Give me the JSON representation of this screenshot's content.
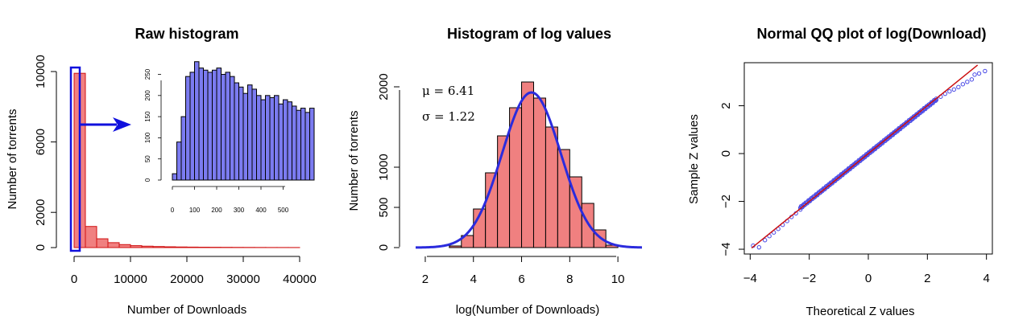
{
  "chart_data": [
    {
      "type": "bar",
      "title": "Raw histogram",
      "xlabel": "Number of Downloads",
      "ylabel": "Number of torrents",
      "xlim": [
        0,
        40000
      ],
      "ylim": [
        0,
        10000
      ],
      "x_ticks": [
        "0",
        "10000",
        "20000",
        "30000",
        "40000"
      ],
      "y_ticks": [
        "0",
        "2000",
        "6000",
        "10000"
      ],
      "bar_color": "#f08080",
      "edge_color": "#d01010",
      "bin_width": 2000,
      "bin_starts": [
        0,
        2000,
        4000,
        6000,
        8000,
        10000,
        12000,
        14000,
        16000,
        18000,
        20000,
        22000,
        24000,
        26000,
        28000,
        30000,
        32000,
        34000,
        36000,
        38000
      ],
      "values": [
        9900,
        1200,
        500,
        280,
        170,
        110,
        80,
        60,
        45,
        35,
        28,
        22,
        18,
        15,
        12,
        10,
        8,
        6,
        5,
        4
      ],
      "highlight_color": "#1010dd",
      "inset": {
        "type": "bar",
        "bar_color": "#7b7bf0",
        "xlim": [
          0,
          520
        ],
        "ylim": [
          0,
          270
        ],
        "x_ticks": [
          "0",
          "100",
          "200",
          "300",
          "400",
          "500"
        ],
        "y_ticks": [
          "0",
          "50",
          "100",
          "150",
          "200",
          "250"
        ],
        "bin_width": 20,
        "values": [
          15,
          90,
          150,
          245,
          255,
          280,
          265,
          260,
          255,
          260,
          265,
          250,
          255,
          245,
          230,
          220,
          205,
          225,
          215,
          200,
          190,
          200,
          195,
          200,
          180,
          190,
          185,
          175,
          165,
          170,
          160,
          170
        ]
      }
    },
    {
      "type": "bar",
      "title": "Histogram of log values",
      "xlabel": "log(Number of Downloads)",
      "ylabel": "Number of torrents",
      "xlim": [
        1.6,
        11
      ],
      "ylim": [
        0,
        2100
      ],
      "x_ticks": [
        "2",
        "4",
        "6",
        "8",
        "10"
      ],
      "y_ticks": [
        "0",
        "500",
        "1000",
        "2000"
      ],
      "bar_color": "#f08080",
      "curve_color": "#2b2bdd",
      "bin_width": 0.5,
      "bin_starts": [
        3.0,
        3.5,
        4.0,
        4.5,
        5.0,
        5.5,
        6.0,
        6.5,
        7.0,
        7.5,
        8.0,
        8.5,
        9.0,
        9.5
      ],
      "values": [
        20,
        150,
        480,
        930,
        1390,
        1740,
        2060,
        1860,
        1500,
        1220,
        880,
        550,
        220,
        30
      ],
      "stats": [
        {
          "symbol": "μ",
          "text": " = 6.41"
        },
        {
          "symbol": "σ",
          "text": " = 1.22"
        }
      ],
      "normal_fit": {
        "mean": 6.41,
        "sd": 1.22,
        "peak": 1930
      }
    },
    {
      "type": "scatter",
      "title": "Normal QQ plot of log(Download)",
      "xlabel": "Theoretical Z values",
      "ylabel": "Sample Z values",
      "xlim": [
        -4.2,
        4.2
      ],
      "ylim": [
        -4.2,
        3.8
      ],
      "x_ticks": [
        "−4",
        "−2",
        "0",
        "2",
        "4"
      ],
      "y_ticks": [
        "−4",
        "−2",
        "0",
        "2"
      ],
      "point_color": "#4a4ae6",
      "line_color": "#cc1111",
      "line": [
        [
          -3.95,
          -3.95
        ],
        [
          3.7,
          3.7
        ]
      ],
      "tail_points": [
        [
          -3.7,
          -3.92
        ],
        [
          -3.9,
          -3.85
        ],
        [
          -3.5,
          -3.62
        ],
        [
          -3.35,
          -3.45
        ],
        [
          -3.2,
          -3.3
        ],
        [
          -3.05,
          -3.15
        ],
        [
          -2.9,
          -2.98
        ],
        [
          -2.75,
          -2.82
        ],
        [
          -2.6,
          -2.65
        ],
        [
          -2.45,
          -2.5
        ],
        [
          -2.3,
          -2.34
        ],
        [
          2.3,
          2.24
        ],
        [
          2.45,
          2.38
        ],
        [
          2.6,
          2.5
        ],
        [
          2.75,
          2.6
        ],
        [
          2.9,
          2.68
        ],
        [
          3.05,
          2.78
        ],
        [
          3.2,
          2.9
        ],
        [
          3.35,
          3.0
        ],
        [
          3.5,
          3.1
        ],
        [
          3.6,
          3.3
        ],
        [
          3.75,
          3.35
        ],
        [
          3.95,
          3.45
        ]
      ]
    }
  ]
}
